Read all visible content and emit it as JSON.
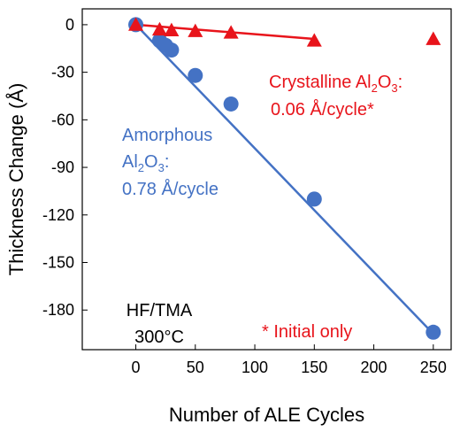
{
  "chart_data": {
    "type": "scatter",
    "xlabel": "Number of ALE Cycles",
    "ylabel": "Thickness Change (Å)",
    "xlim": [
      -45,
      265
    ],
    "ylim": [
      -205,
      10
    ],
    "xticks": [
      0,
      50,
      100,
      150,
      200,
      250
    ],
    "yticks": [
      0,
      -30,
      -60,
      -90,
      -120,
      -150,
      -180
    ],
    "grid": false,
    "series": [
      {
        "name": "Amorphous Al2O3",
        "marker": "circle",
        "color": "#4472C4",
        "x": [
          0,
          20,
          25,
          30,
          50,
          80,
          150,
          250
        ],
        "y": [
          0,
          -10,
          -13,
          -16,
          -32,
          -50,
          -110,
          -194
        ],
        "fit": {
          "x": [
            0,
            250
          ],
          "y": [
            0,
            -195
          ]
        }
      },
      {
        "name": "Crystalline Al2O3",
        "marker": "triangle",
        "color": "#E8141B",
        "x": [
          0,
          20,
          30,
          50,
          80,
          150,
          250
        ],
        "y": [
          0,
          -3,
          -3.5,
          -4,
          -5,
          -10,
          -9
        ],
        "fit": {
          "x": [
            0,
            150
          ],
          "y": [
            0,
            -9
          ]
        }
      }
    ],
    "annotations": {
      "crystalline": {
        "line1_pre": "Crystalline Al",
        "line1_sub1": "2",
        "line1_mid": "O",
        "line1_sub2": "3",
        "line1_post": ":",
        "line2": "0.06 Å/cycle*",
        "color": "#E8141B"
      },
      "amorphous": {
        "line1": "Amorphous",
        "line2_pre": "Al",
        "line2_sub1": "2",
        "line2_mid": "O",
        "line2_sub2": "3",
        "line2_post": ":",
        "line3": "0.78 Å/cycle",
        "color": "#4472C4"
      },
      "conditions": {
        "line1": "HF/TMA",
        "line2": "300°C"
      },
      "footnote": {
        "text": "* Initial only",
        "color": "#E8141B"
      }
    }
  }
}
